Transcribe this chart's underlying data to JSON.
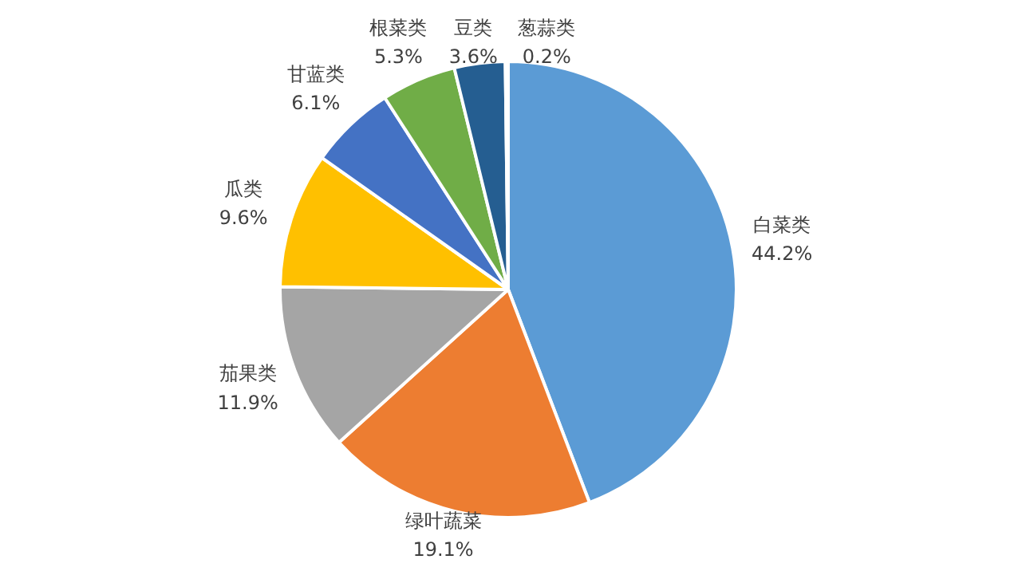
{
  "chart_data": {
    "type": "pie",
    "categories": [
      "白菜类",
      "绿叶蔬菜",
      "茄果类",
      "瓜类",
      "甘蓝类",
      "根菜类",
      "豆类",
      "葱蒜类"
    ],
    "values": [
      44.2,
      19.1,
      11.9,
      9.6,
      6.1,
      5.3,
      3.6,
      0.2
    ],
    "colors": [
      "#5b9bd5",
      "#ed7d31",
      "#a5a5a5",
      "#ffc000",
      "#4472c4",
      "#70ad47",
      "#255e91",
      "#9e480e"
    ],
    "value_labels": [
      "44.2%",
      "19.1%",
      "11.9%",
      "9.6%",
      "6.1%",
      "5.3%",
      "3.6%",
      "0.2%"
    ]
  }
}
